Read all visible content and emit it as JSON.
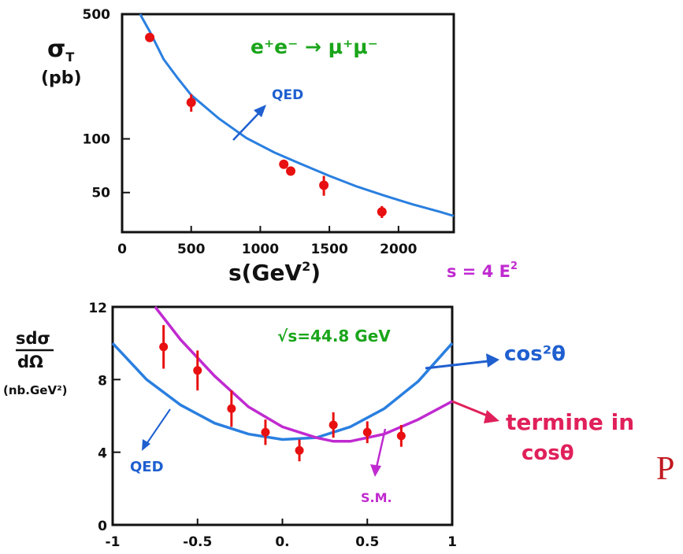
{
  "chart_data": [
    {
      "type": "scatter",
      "yscale": "log",
      "xlabel": "s(GeV²)",
      "ylabel": "σT\n(pb)",
      "xlim": [
        0,
        2400
      ],
      "ylim": [
        30,
        500
      ],
      "xticks": [
        "0",
        "500",
        "1000",
        "1500",
        "2000"
      ],
      "yticks": [
        "500",
        "100",
        "50"
      ],
      "process": "e⁺e⁻ → μ⁺μ⁻",
      "series": [
        {
          "name": "QED",
          "type": "line",
          "x": [
            130,
            200,
            300,
            400,
            500,
            700,
            900,
            1100,
            1300,
            1500,
            1700,
            1900,
            2100,
            2300,
            2400
          ],
          "y": [
            500,
            400,
            280,
            220,
            176,
            130,
            101,
            84,
            72,
            62,
            54,
            48,
            43,
            39,
            37
          ]
        },
        {
          "name": "data",
          "type": "scatter",
          "x": [
            200,
            500,
            1170,
            1220,
            1460,
            1880
          ],
          "y": [
            370,
            160,
            72,
            66,
            55,
            39
          ],
          "err": [
            20,
            18,
            3,
            3,
            7,
            3
          ]
        }
      ],
      "annotations": [
        "QED"
      ]
    },
    {
      "type": "scatter",
      "xlabel": "",
      "ylabel": "sdσ\ndΩ\n(nb.GeV²)",
      "xlim": [
        -1,
        1
      ],
      "ylim": [
        0,
        12
      ],
      "xticks": [
        "-1",
        "-0.5",
        "0.",
        "0.5",
        "1"
      ],
      "yticks": [
        "0",
        "4",
        "8",
        "12"
      ],
      "energy_label": "√s=44.8 GeV",
      "series": [
        {
          "name": "QED",
          "type": "line",
          "x": [
            -1,
            -0.8,
            -0.6,
            -0.4,
            -0.2,
            0,
            0.2,
            0.4,
            0.6,
            0.8,
            1
          ],
          "y": [
            10.0,
            8.0,
            6.6,
            5.6,
            5.0,
            4.7,
            4.8,
            5.4,
            6.4,
            7.9,
            10.0
          ]
        },
        {
          "name": "S.M.",
          "type": "line",
          "x": [
            -0.75,
            -0.6,
            -0.4,
            -0.2,
            0,
            0.2,
            0.3,
            0.4,
            0.6,
            0.8,
            1
          ],
          "y": [
            12.0,
            10.2,
            8.2,
            6.5,
            5.4,
            4.8,
            4.6,
            4.6,
            5.0,
            5.8,
            6.8
          ]
        },
        {
          "name": "data",
          "type": "scatter",
          "x": [
            -0.7,
            -0.5,
            -0.3,
            -0.1,
            0.1,
            0.3,
            0.5,
            0.7
          ],
          "y": [
            9.8,
            8.5,
            6.4,
            5.1,
            4.1,
            5.5,
            5.1,
            4.9
          ],
          "err": [
            1.2,
            1.1,
            1.0,
            0.7,
            0.6,
            0.7,
            0.6,
            0.6
          ]
        }
      ],
      "annotations": [
        "cos²θ",
        "termine in\ncosθ",
        "QED",
        "S.M.",
        "s = 4 E²"
      ]
    }
  ],
  "labels": {
    "process": "e⁺e⁻ → μ⁺μ⁻",
    "top_qed": "QED",
    "top_y1": "σ",
    "top_y1_sub": "T",
    "top_y2": "(pb)",
    "top_xlabel_main": "s(GeV",
    "top_xlabel_sup": "2",
    "top_xlabel_close": ")",
    "s_formula": "s = 4 E",
    "s_formula_sup": "2",
    "energy": "√s=44.8 GeV",
    "bot_y1": "sdσ",
    "bot_y2": "dΩ",
    "bot_y3": "(nb.GeV²)",
    "cos2": "cos²θ",
    "termine1": "termine in",
    "termine2": "cosθ",
    "bot_qed": "QED",
    "bot_sm": "S.M.",
    "corner": "P"
  },
  "colors": {
    "axis": "#111111",
    "qed": "#2a7fe0",
    "sm": "#c02ad0",
    "data": "#e81010",
    "process": "#1aa51a",
    "annot_blue": "#1f5fd0",
    "termine": "#e0205a",
    "corner": "#c0181f"
  }
}
